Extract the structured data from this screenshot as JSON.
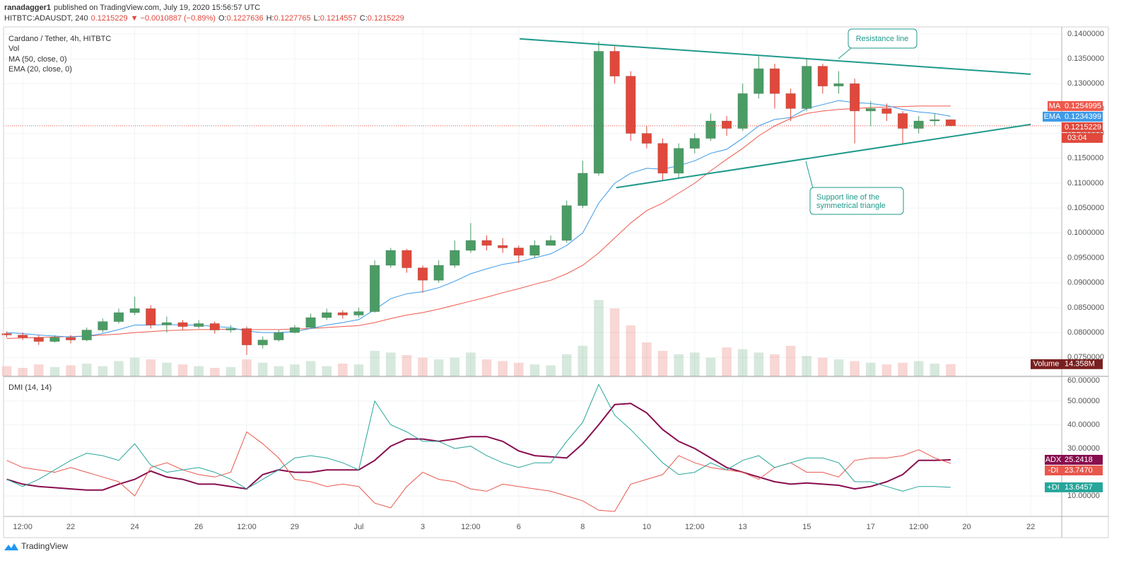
{
  "header": {
    "publisher": "ranadagger1",
    "published": "published on TradingView.com, July 19, 2020 15:56:57 UTC",
    "symbol": "HITBTC:ADAUSDT, 240",
    "change": "▼ −0.0010887 (−0.89%)",
    "ohlc_labels": [
      "O:",
      "H:",
      "L:",
      "C:"
    ]
  },
  "footer": "TradingView",
  "chart_data": {
    "type": "candlestick",
    "title": "Cardano / Tether, 4h, HITBTC",
    "up_color": "#4a9c64",
    "down_color": "#e0483c",
    "x": [
      20,
      20.5,
      21,
      21.5,
      22,
      22.5,
      23,
      23.5,
      24,
      24.5,
      25,
      25.5,
      26,
      26.5,
      27,
      27.5,
      28,
      28.5,
      29,
      29.5,
      30,
      30.5,
      31,
      31.5,
      32,
      32.5,
      33,
      33.5,
      34,
      34.5,
      35,
      35.5,
      36,
      36.5,
      37,
      37.5,
      38,
      38.5,
      39,
      39.5,
      40,
      40.5,
      41,
      41.5,
      42,
      42.5,
      43,
      43.5,
      44,
      44.5,
      45,
      45.5,
      46,
      46.5,
      47,
      47.5,
      48,
      48.5,
      49,
      49.5
    ],
    "open": [
      0.0798,
      0.0795,
      0.079,
      0.0782,
      0.079,
      0.0785,
      0.0805,
      0.0822,
      0.084,
      0.0848,
      0.0815,
      0.082,
      0.0812,
      0.0818,
      0.0805,
      0.0808,
      0.0775,
      0.0785,
      0.08,
      0.081,
      0.083,
      0.084,
      0.0835,
      0.0842,
      0.0935,
      0.0965,
      0.093,
      0.0905,
      0.0935,
      0.0965,
      0.0985,
      0.0975,
      0.097,
      0.0955,
      0.0975,
      0.0985,
      0.1055,
      0.112,
      0.1365,
      0.1315,
      0.12,
      0.118,
      0.112,
      0.117,
      0.119,
      0.1225,
      0.121,
      0.128,
      0.133,
      0.128,
      0.125,
      0.1335,
      0.1295,
      0.13,
      0.1245,
      0.125,
      0.124,
      0.121,
      0.1225,
      0.1227636
    ],
    "high": [
      0.0802,
      0.08,
      0.0795,
      0.0795,
      0.0795,
      0.081,
      0.0828,
      0.0848,
      0.0872,
      0.0855,
      0.0832,
      0.0825,
      0.0825,
      0.0822,
      0.0815,
      0.0812,
      0.0792,
      0.0805,
      0.0815,
      0.0838,
      0.0848,
      0.0845,
      0.085,
      0.0945,
      0.097,
      0.0968,
      0.0935,
      0.0945,
      0.0985,
      0.102,
      0.0995,
      0.099,
      0.0975,
      0.0985,
      0.0995,
      0.1065,
      0.1145,
      0.1385,
      0.1375,
      0.1325,
      0.1215,
      0.119,
      0.118,
      0.12,
      0.124,
      0.1235,
      0.13,
      0.1355,
      0.134,
      0.129,
      0.135,
      0.134,
      0.1325,
      0.131,
      0.1265,
      0.126,
      0.1245,
      0.1235,
      0.124,
      0.1227765
    ],
    "low": [
      0.079,
      0.0785,
      0.0775,
      0.078,
      0.0778,
      0.0783,
      0.08,
      0.0818,
      0.0835,
      0.0808,
      0.08,
      0.0805,
      0.0808,
      0.0798,
      0.08,
      0.0755,
      0.0768,
      0.0782,
      0.0798,
      0.0808,
      0.0825,
      0.0828,
      0.083,
      0.084,
      0.093,
      0.092,
      0.088,
      0.09,
      0.093,
      0.096,
      0.0965,
      0.096,
      0.094,
      0.095,
      0.0975,
      0.098,
      0.105,
      0.1115,
      0.13,
      0.1185,
      0.117,
      0.1105,
      0.111,
      0.116,
      0.1185,
      0.1195,
      0.1205,
      0.127,
      0.125,
      0.1225,
      0.1245,
      0.128,
      0.128,
      0.118,
      0.1215,
      0.1225,
      0.118,
      0.12,
      0.1215,
      0.1214557
    ],
    "close": [
      0.0795,
      0.079,
      0.0782,
      0.079,
      0.0785,
      0.0805,
      0.0822,
      0.084,
      0.0848,
      0.0815,
      0.082,
      0.0812,
      0.0818,
      0.0805,
      0.0808,
      0.0775,
      0.0785,
      0.08,
      0.081,
      0.083,
      0.084,
      0.0835,
      0.0842,
      0.0935,
      0.0965,
      0.093,
      0.0905,
      0.0935,
      0.0965,
      0.0985,
      0.0975,
      0.097,
      0.0955,
      0.0975,
      0.0985,
      0.1055,
      0.112,
      0.1365,
      0.1315,
      0.12,
      0.118,
      0.112,
      0.117,
      0.119,
      0.1225,
      0.121,
      0.128,
      0.133,
      0.128,
      0.125,
      0.1335,
      0.1295,
      0.13,
      0.1245,
      0.125,
      0.124,
      0.121,
      0.1225,
      0.1227636,
      0.1215229
    ],
    "xlim": [
      19.9,
      52.97
    ],
    "ylim": [
      0.0712,
      0.1414
    ],
    "yticks": [
      {
        "value": 0.075,
        "label": "0.0750000"
      },
      {
        "value": 0.08,
        "label": "0.0800000"
      },
      {
        "value": 0.085,
        "label": "0.0850000"
      },
      {
        "value": 0.09,
        "label": "0.0900000"
      },
      {
        "value": 0.095,
        "label": "0.0950000"
      },
      {
        "value": 0.1,
        "label": "0.1000000"
      },
      {
        "value": 0.105,
        "label": "0.1050000"
      },
      {
        "value": 0.11,
        "label": "0.1100000"
      },
      {
        "value": 0.115,
        "label": "0.1150000"
      },
      {
        "value": 0.12,
        "label": "0.1200000"
      },
      {
        "value": 0.125,
        "label": "0.1250000"
      },
      {
        "value": 0.13,
        "label": "0.1300000"
      },
      {
        "value": 0.135,
        "label": "0.1350000"
      },
      {
        "value": 0.14,
        "label": "0.1400000"
      }
    ],
    "xticks": [
      {
        "value": 20.5,
        "label": "12:00"
      },
      {
        "value": 22,
        "label": "22"
      },
      {
        "value": 24,
        "label": "24"
      },
      {
        "value": 26,
        "label": "26"
      },
      {
        "value": 27.5,
        "label": "12:00"
      },
      {
        "value": 29,
        "label": "29"
      },
      {
        "value": 31,
        "label": "Jul"
      },
      {
        "value": 33,
        "label": "3"
      },
      {
        "value": 34.5,
        "label": "12:00"
      },
      {
        "value": 36,
        "label": "6"
      },
      {
        "value": 38,
        "label": "8"
      },
      {
        "value": 40,
        "label": "10"
      },
      {
        "value": 41.5,
        "label": "12:00"
      },
      {
        "value": 43,
        "label": "13"
      },
      {
        "value": 45,
        "label": "15"
      },
      {
        "value": 47,
        "label": "17"
      },
      {
        "value": 48.5,
        "label": "12:00"
      },
      {
        "value": 50,
        "label": "20"
      },
      {
        "value": 52,
        "label": "22"
      }
    ],
    "grid": true,
    "countdown": "03:04",
    "volume": {
      "name": "Vol",
      "badge_name": "Volume",
      "badge_label": "14.358M",
      "ylim": [
        0,
        100
      ],
      "values": [
        12,
        10,
        14,
        11,
        13,
        15,
        12,
        18,
        22,
        20,
        16,
        14,
        12,
        10,
        11,
        20,
        16,
        12,
        14,
        18,
        12,
        15,
        14,
        30,
        28,
        25,
        22,
        20,
        22,
        28,
        20,
        18,
        16,
        14,
        13,
        26,
        36,
        90,
        80,
        60,
        40,
        30,
        26,
        28,
        22,
        34,
        32,
        28,
        26,
        36,
        24,
        22,
        20,
        18,
        16,
        14,
        16,
        18,
        15,
        14.358
      ]
    },
    "overlays": [
      {
        "name": "MA (50, close, 0)",
        "badge": "MA",
        "color": "#f0584c",
        "values": [
          0.0788,
          0.0789,
          0.079,
          0.0791,
          0.0792,
          0.0793,
          0.0795,
          0.0797,
          0.08,
          0.0802,
          0.0804,
          0.0805,
          0.0806,
          0.0806,
          0.0807,
          0.0806,
          0.0806,
          0.0806,
          0.0807,
          0.0808,
          0.081,
          0.0812,
          0.0814,
          0.082,
          0.0828,
          0.0835,
          0.084,
          0.0847,
          0.0855,
          0.0863,
          0.0871,
          0.088,
          0.0888,
          0.0897,
          0.0905,
          0.0918,
          0.0935,
          0.096,
          0.099,
          0.102,
          0.1045,
          0.106,
          0.108,
          0.11,
          0.1125,
          0.1148,
          0.117,
          0.1195,
          0.1215,
          0.123,
          0.124,
          0.1245,
          0.1248,
          0.125,
          0.1252,
          0.1253,
          0.1254,
          0.1255,
          0.1255,
          0.1254995
        ]
      },
      {
        "name": "EMA (20, close, 0)",
        "badge": "EMA",
        "color": "#3d9ae8",
        "values": [
          0.08,
          0.0798,
          0.0795,
          0.0793,
          0.0791,
          0.0793,
          0.0798,
          0.0806,
          0.0815,
          0.0815,
          0.0816,
          0.0815,
          0.0815,
          0.0812,
          0.081,
          0.0803,
          0.08,
          0.08,
          0.0802,
          0.0808,
          0.0815,
          0.082,
          0.0826,
          0.0846,
          0.0868,
          0.0878,
          0.0882,
          0.089,
          0.0903,
          0.0918,
          0.0928,
          0.0937,
          0.0942,
          0.095,
          0.0958,
          0.0975,
          0.1,
          0.106,
          0.11,
          0.112,
          0.113,
          0.1128,
          0.1135,
          0.1145,
          0.116,
          0.1168,
          0.119,
          0.1215,
          0.1228,
          0.1232,
          0.125,
          0.1258,
          0.1266,
          0.1262,
          0.126,
          0.1256,
          0.1248,
          0.1243,
          0.124,
          0.1234399
        ]
      }
    ],
    "trendlines": [
      {
        "label": [
          "Resistance line"
        ],
        "color": "#1f9a8b",
        "x": [
          36.03,
          52
        ],
        "y": [
          0.139,
          0.1319
        ]
      },
      {
        "label": [
          "Support line of the",
          "symmetrical triangle"
        ],
        "color": "#1f9a8b",
        "x": [
          39.05,
          52
        ],
        "y": [
          0.1091,
          0.1218
        ]
      }
    ],
    "dmi": {
      "title": "DMI (14, 14)",
      "ylim": [
        1.4,
        60.1
      ],
      "yticks": [
        {
          "value": 10,
          "label": "10.00000"
        },
        {
          "value": 30,
          "label": "30.00000"
        },
        {
          "value": 40,
          "label": "40.00000"
        },
        {
          "value": 50,
          "label": "50.00000"
        },
        {
          "value": 60,
          "label": "60.00000"
        }
      ],
      "series": [
        {
          "name": "ADX",
          "color": "#880e4f",
          "width": 2,
          "values": [
            17,
            15,
            14,
            13.5,
            13,
            12.5,
            12.5,
            15,
            17,
            20.5,
            18,
            17,
            15,
            15,
            14,
            13,
            19,
            21,
            20,
            20,
            21,
            21,
            21,
            25,
            31,
            34,
            34,
            33,
            34,
            35,
            35,
            33,
            29,
            27,
            26.5,
            26,
            32,
            40,
            48.5,
            49,
            45,
            38,
            33,
            30,
            26,
            22,
            20,
            18,
            16,
            15,
            15.5,
            15,
            14.5,
            13,
            14,
            16,
            19,
            25,
            25,
            25.2418
          ]
        },
        {
          "name": "-DI",
          "color": "#e8574c",
          "width": 1,
          "badge_label": "23.7470",
          "values": [
            25,
            22,
            21,
            20,
            22,
            20,
            18,
            16,
            10,
            22,
            24,
            21,
            19,
            18,
            20,
            37,
            32,
            26,
            17,
            16,
            14,
            15,
            14,
            7,
            5,
            14,
            20,
            17,
            16,
            13,
            12,
            15,
            14,
            13,
            12,
            10,
            8,
            4,
            3.5,
            15,
            17,
            19,
            27,
            24,
            22,
            21,
            20,
            17,
            22,
            24,
            20,
            20,
            18,
            25,
            26,
            26,
            27,
            29.5,
            26,
            23.747
          ]
        },
        {
          "name": "+DI",
          "color": "#26a69a",
          "width": 1,
          "values": [
            17,
            14,
            17,
            21,
            25,
            28,
            27,
            25,
            32,
            23,
            20,
            21,
            22,
            20,
            17,
            13,
            17,
            21,
            26,
            27,
            26,
            24,
            21,
            50,
            40,
            37,
            33,
            33,
            30,
            31,
            27,
            24,
            22,
            24,
            24,
            33,
            41,
            57,
            44,
            38,
            31,
            24,
            19,
            20,
            24,
            21,
            25,
            27,
            22,
            24,
            26,
            26,
            24,
            16,
            16,
            14,
            12,
            14,
            14,
            13.6457
          ]
        }
      ]
    }
  }
}
